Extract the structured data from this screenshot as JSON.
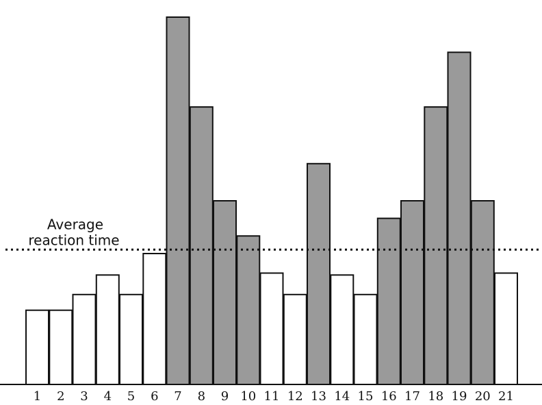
{
  "chart_data": {
    "type": "bar",
    "categories": [
      "1",
      "2",
      "3",
      "4",
      "5",
      "6",
      "7",
      "8",
      "9",
      "10",
      "11",
      "12",
      "13",
      "14",
      "15",
      "16",
      "17",
      "18",
      "19",
      "20",
      "21"
    ],
    "values": [
      38,
      38,
      46,
      56,
      46,
      67,
      188,
      142,
      94,
      76,
      57,
      46,
      113,
      56,
      46,
      85,
      94,
      142,
      170,
      94,
      57
    ],
    "highlighted": [
      false,
      false,
      false,
      false,
      false,
      false,
      true,
      true,
      true,
      true,
      false,
      false,
      true,
      false,
      false,
      true,
      true,
      true,
      true,
      true,
      false
    ],
    "reference_line": {
      "value": 69,
      "label_line1": "Average",
      "label_line2": "reaction time"
    },
    "title": "",
    "xlabel": "",
    "ylabel": "",
    "ylim": [
      0,
      195
    ],
    "grid": false,
    "colors": {
      "highlighted_fill": "#9a9a9a",
      "normal_fill": "#ffffff",
      "stroke": "#111111"
    }
  }
}
